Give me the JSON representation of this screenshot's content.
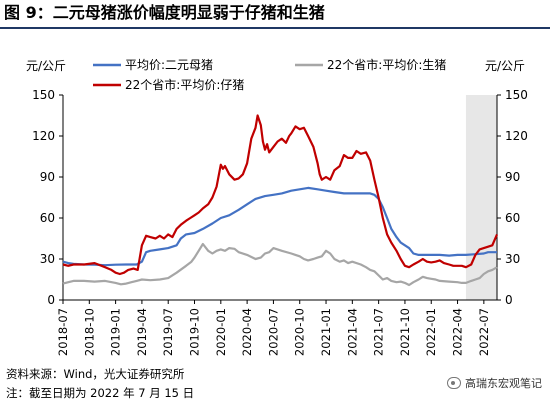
{
  "title": "图 9：二元母猪涨价幅度明显弱于仔猪和生猪",
  "footer": {
    "source": "资料来源：Wind，光大证券研究所",
    "note": "注：截至日期为 2022 年 7 月 15 日"
  },
  "watermark": "高瑞东宏观笔记",
  "colors": {
    "sow": "#4472c4",
    "piglet": "#c00000",
    "hog": "#a6a6a6",
    "shade": "#e7e7e7"
  },
  "chart_data": {
    "type": "line",
    "title": "",
    "ylabel_left": "元/公斤",
    "ylabel_right": "元/公斤",
    "ylim": [
      0,
      150
    ],
    "yticks": [
      0,
      30,
      60,
      90,
      120,
      150
    ],
    "xlim": [
      2018.5,
      2022.625
    ],
    "xticks": [
      "2018-07",
      "2018-10",
      "2019-01",
      "2019-04",
      "2019-07",
      "2019-10",
      "2020-01",
      "2020-04",
      "2020-07",
      "2020-10",
      "2021-01",
      "2021-04",
      "2021-07",
      "2021-10",
      "2022-01",
      "2022-04",
      "2022-07"
    ],
    "grid": false,
    "legend_position": "top",
    "shaded_region": [
      2022.33,
      2022.625
    ],
    "series": [
      {
        "name": "平均价:二元母猪",
        "axis": "left",
        "color": "#4472c4",
        "points": [
          [
            2018.5,
            28
          ],
          [
            2018.55,
            27
          ],
          [
            2018.6,
            26.5
          ],
          [
            2018.7,
            26
          ],
          [
            2018.8,
            25.8
          ],
          [
            2018.9,
            25.5
          ],
          [
            2019.0,
            25.8
          ],
          [
            2019.1,
            26
          ],
          [
            2019.2,
            26
          ],
          [
            2019.25,
            28
          ],
          [
            2019.29,
            35
          ],
          [
            2019.33,
            36
          ],
          [
            2019.42,
            37
          ],
          [
            2019.5,
            38
          ],
          [
            2019.58,
            40
          ],
          [
            2019.62,
            45
          ],
          [
            2019.67,
            48
          ],
          [
            2019.75,
            49
          ],
          [
            2019.83,
            52
          ],
          [
            2019.92,
            56
          ],
          [
            2020.0,
            60
          ],
          [
            2020.08,
            62
          ],
          [
            2020.17,
            66
          ],
          [
            2020.25,
            70
          ],
          [
            2020.33,
            74
          ],
          [
            2020.42,
            76
          ],
          [
            2020.5,
            77
          ],
          [
            2020.58,
            78
          ],
          [
            2020.67,
            80
          ],
          [
            2020.75,
            81
          ],
          [
            2020.83,
            82
          ],
          [
            2020.92,
            81
          ],
          [
            2021.0,
            80
          ],
          [
            2021.08,
            79
          ],
          [
            2021.17,
            78
          ],
          [
            2021.25,
            78
          ],
          [
            2021.33,
            78
          ],
          [
            2021.42,
            78
          ],
          [
            2021.46,
            77
          ],
          [
            2021.5,
            74
          ],
          [
            2021.54,
            68
          ],
          [
            2021.58,
            60
          ],
          [
            2021.62,
            52
          ],
          [
            2021.67,
            46
          ],
          [
            2021.71,
            42
          ],
          [
            2021.75,
            40
          ],
          [
            2021.79,
            38
          ],
          [
            2021.83,
            34
          ],
          [
            2021.88,
            33
          ],
          [
            2021.96,
            33
          ],
          [
            2022.08,
            33
          ],
          [
            2022.17,
            32.5
          ],
          [
            2022.25,
            33
          ],
          [
            2022.33,
            33
          ],
          [
            2022.42,
            33.5
          ],
          [
            2022.5,
            34
          ],
          [
            2022.54,
            35
          ],
          [
            2022.625,
            35
          ]
        ]
      },
      {
        "name": "22个省市:平均价:生猪",
        "axis": "right",
        "color": "#a6a6a6",
        "points": [
          [
            2018.5,
            12
          ],
          [
            2018.55,
            13
          ],
          [
            2018.6,
            14
          ],
          [
            2018.7,
            14
          ],
          [
            2018.8,
            13.5
          ],
          [
            2018.9,
            14
          ],
          [
            2019.0,
            12.5
          ],
          [
            2019.05,
            11.5
          ],
          [
            2019.1,
            12
          ],
          [
            2019.15,
            13
          ],
          [
            2019.2,
            14
          ],
          [
            2019.25,
            15
          ],
          [
            2019.33,
            14.5
          ],
          [
            2019.42,
            15
          ],
          [
            2019.5,
            16
          ],
          [
            2019.58,
            20
          ],
          [
            2019.67,
            25
          ],
          [
            2019.72,
            28
          ],
          [
            2019.75,
            31
          ],
          [
            2019.79,
            36
          ],
          [
            2019.83,
            41
          ],
          [
            2019.88,
            36
          ],
          [
            2019.92,
            34
          ],
          [
            2019.96,
            36
          ],
          [
            2020.0,
            37
          ],
          [
            2020.04,
            36
          ],
          [
            2020.08,
            38
          ],
          [
            2020.13,
            37.5
          ],
          [
            2020.17,
            35
          ],
          [
            2020.25,
            33
          ],
          [
            2020.33,
            30
          ],
          [
            2020.38,
            31
          ],
          [
            2020.42,
            34
          ],
          [
            2020.46,
            35
          ],
          [
            2020.5,
            38
          ],
          [
            2020.54,
            37
          ],
          [
            2020.58,
            36
          ],
          [
            2020.67,
            34
          ],
          [
            2020.71,
            33
          ],
          [
            2020.75,
            32
          ],
          [
            2020.79,
            30
          ],
          [
            2020.83,
            29
          ],
          [
            2020.88,
            30
          ],
          [
            2020.92,
            31
          ],
          [
            2020.96,
            32
          ],
          [
            2021.0,
            36
          ],
          [
            2021.04,
            34
          ],
          [
            2021.08,
            30
          ],
          [
            2021.13,
            28
          ],
          [
            2021.17,
            29
          ],
          [
            2021.21,
            27
          ],
          [
            2021.25,
            28
          ],
          [
            2021.33,
            26
          ],
          [
            2021.38,
            24
          ],
          [
            2021.42,
            22
          ],
          [
            2021.46,
            21
          ],
          [
            2021.5,
            18
          ],
          [
            2021.54,
            15
          ],
          [
            2021.58,
            16
          ],
          [
            2021.62,
            14
          ],
          [
            2021.67,
            13
          ],
          [
            2021.71,
            13.5
          ],
          [
            2021.75,
            12.5
          ],
          [
            2021.79,
            11
          ],
          [
            2021.83,
            13
          ],
          [
            2021.88,
            15
          ],
          [
            2021.92,
            17
          ],
          [
            2021.96,
            16
          ],
          [
            2022.0,
            15.5
          ],
          [
            2022.04,
            15
          ],
          [
            2022.08,
            14
          ],
          [
            2022.17,
            13.5
          ],
          [
            2022.25,
            13
          ],
          [
            2022.29,
            12.5
          ],
          [
            2022.33,
            12.5
          ],
          [
            2022.38,
            14
          ],
          [
            2022.42,
            15
          ],
          [
            2022.46,
            16
          ],
          [
            2022.5,
            19
          ],
          [
            2022.54,
            21
          ],
          [
            2022.58,
            22
          ],
          [
            2022.625,
            24
          ]
        ]
      },
      {
        "name": "22个省市:平均价:仔猪",
        "axis": "left",
        "color": "#c00000",
        "points": [
          [
            2018.5,
            26
          ],
          [
            2018.55,
            25
          ],
          [
            2018.6,
            26
          ],
          [
            2018.7,
            26
          ],
          [
            2018.8,
            27
          ],
          [
            2018.9,
            24
          ],
          [
            2018.96,
            22
          ],
          [
            2019.0,
            20
          ],
          [
            2019.04,
            19
          ],
          [
            2019.08,
            20
          ],
          [
            2019.12,
            22
          ],
          [
            2019.17,
            23
          ],
          [
            2019.21,
            22
          ],
          [
            2019.25,
            40
          ],
          [
            2019.29,
            47
          ],
          [
            2019.33,
            46
          ],
          [
            2019.38,
            45
          ],
          [
            2019.42,
            47
          ],
          [
            2019.46,
            45
          ],
          [
            2019.5,
            48
          ],
          [
            2019.54,
            46
          ],
          [
            2019.58,
            52
          ],
          [
            2019.62,
            55
          ],
          [
            2019.67,
            58
          ],
          [
            2019.71,
            60
          ],
          [
            2019.75,
            62
          ],
          [
            2019.79,
            64
          ],
          [
            2019.83,
            67
          ],
          [
            2019.88,
            70
          ],
          [
            2019.92,
            75
          ],
          [
            2019.96,
            83
          ],
          [
            2020.0,
            99
          ],
          [
            2020.02,
            96
          ],
          [
            2020.04,
            98
          ],
          [
            2020.08,
            92
          ],
          [
            2020.13,
            88
          ],
          [
            2020.17,
            89
          ],
          [
            2020.21,
            92
          ],
          [
            2020.25,
            100
          ],
          [
            2020.29,
            118
          ],
          [
            2020.33,
            126
          ],
          [
            2020.35,
            135
          ],
          [
            2020.38,
            128
          ],
          [
            2020.4,
            116
          ],
          [
            2020.42,
            110
          ],
          [
            2020.44,
            114
          ],
          [
            2020.46,
            108
          ],
          [
            2020.5,
            112
          ],
          [
            2020.54,
            116
          ],
          [
            2020.58,
            118
          ],
          [
            2020.62,
            115
          ],
          [
            2020.65,
            120
          ],
          [
            2020.67,
            122
          ],
          [
            2020.71,
            127
          ],
          [
            2020.75,
            125
          ],
          [
            2020.79,
            126
          ],
          [
            2020.83,
            120
          ],
          [
            2020.88,
            112
          ],
          [
            2020.92,
            100
          ],
          [
            2020.94,
            92
          ],
          [
            2020.96,
            88
          ],
          [
            2021.0,
            90
          ],
          [
            2021.04,
            88
          ],
          [
            2021.08,
            95
          ],
          [
            2021.13,
            98
          ],
          [
            2021.17,
            106
          ],
          [
            2021.21,
            104
          ],
          [
            2021.25,
            104
          ],
          [
            2021.29,
            109
          ],
          [
            2021.33,
            107
          ],
          [
            2021.38,
            108
          ],
          [
            2021.42,
            102
          ],
          [
            2021.46,
            88
          ],
          [
            2021.5,
            75
          ],
          [
            2021.54,
            60
          ],
          [
            2021.58,
            48
          ],
          [
            2021.62,
            42
          ],
          [
            2021.67,
            36
          ],
          [
            2021.71,
            30
          ],
          [
            2021.75,
            25
          ],
          [
            2021.79,
            24
          ],
          [
            2021.83,
            26
          ],
          [
            2021.88,
            28
          ],
          [
            2021.92,
            30
          ],
          [
            2021.96,
            28
          ],
          [
            2022.0,
            27.5
          ],
          [
            2022.04,
            28
          ],
          [
            2022.08,
            29
          ],
          [
            2022.12,
            27
          ],
          [
            2022.17,
            26
          ],
          [
            2022.21,
            25
          ],
          [
            2022.25,
            25
          ],
          [
            2022.29,
            25
          ],
          [
            2022.33,
            24
          ],
          [
            2022.38,
            26
          ],
          [
            2022.42,
            33
          ],
          [
            2022.46,
            37
          ],
          [
            2022.5,
            38
          ],
          [
            2022.54,
            39
          ],
          [
            2022.58,
            40
          ],
          [
            2022.625,
            48
          ]
        ]
      }
    ]
  }
}
